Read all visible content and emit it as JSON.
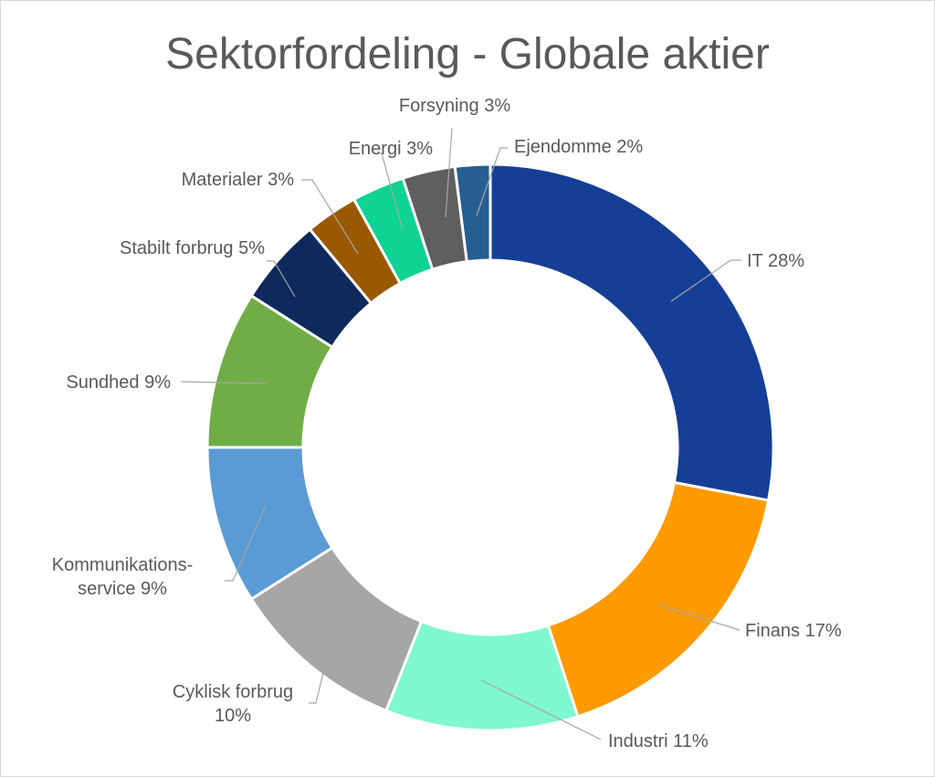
{
  "chart_data": {
    "type": "pie",
    "title": "Sektorfordeling - Globale aktier",
    "slices": [
      {
        "label": "IT  28%",
        "value": 28,
        "color": "#153f96"
      },
      {
        "label": "Finans  17%",
        "value": 17,
        "color": "#ff9a00"
      },
      {
        "label": "Industri 11%",
        "value": 11,
        "color": "#7ff7d0"
      },
      {
        "label": [
          "Cyklisk forbrug",
          "10%"
        ],
        "value": 10,
        "color": "#a6a6a6"
      },
      {
        "label": [
          "Kommunikations-",
          "service  9%"
        ],
        "value": 9,
        "color": "#5b9bd5"
      },
      {
        "label": "Sundhed  9%",
        "value": 9,
        "color": "#70ad47"
      },
      {
        "label": "Stabilt forbrug  5%",
        "value": 5,
        "color": "#0e2a5c"
      },
      {
        "label": "Materialer  3%",
        "value": 3,
        "color": "#995900"
      },
      {
        "label": "Energi  3%",
        "value": 3,
        "color": "#0ed393"
      },
      {
        "label": "Forsyning 3%",
        "value": 3,
        "color": "#5f5f5f"
      },
      {
        "label": "Ejendomme  2%",
        "value": 2,
        "color": "#255e91"
      }
    ]
  }
}
